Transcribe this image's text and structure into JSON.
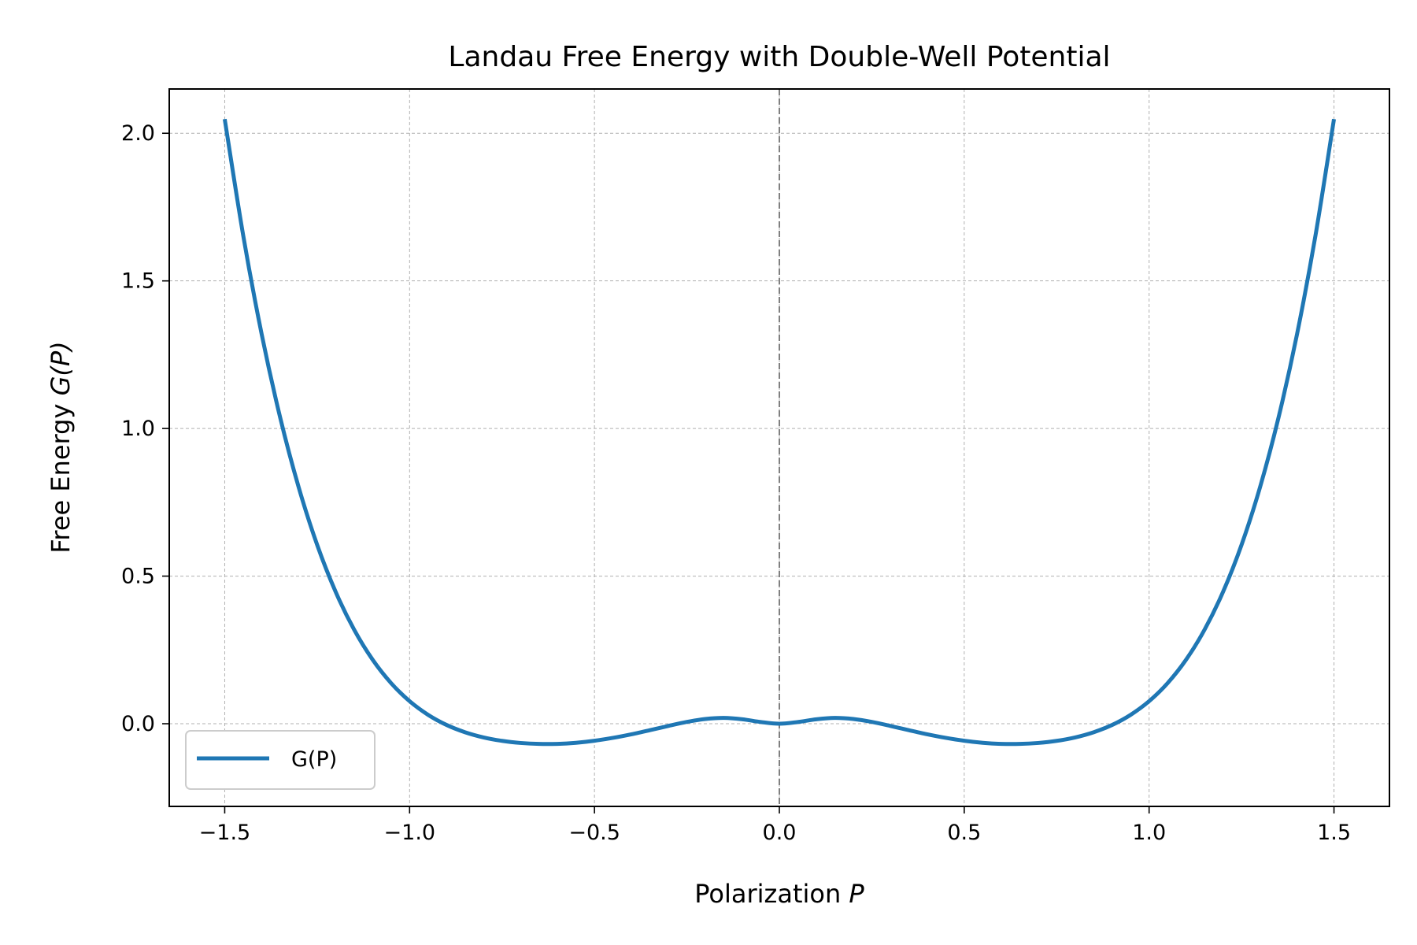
{
  "chart_data": {
    "type": "line",
    "title": "Landau Free Energy with Double-Well Potential",
    "xlabel": "Polarization",
    "xlabel_symbol": "P",
    "ylabel": "Free Energy",
    "ylabel_symbol": "G(P)",
    "xlim": [
      -1.65,
      1.65
    ],
    "ylim": [
      -0.28,
      2.15
    ],
    "x_ticks": [
      -1.5,
      -1.0,
      -0.5,
      0.0,
      0.5,
      1.0,
      1.5
    ],
    "x_tick_labels": [
      "−1.5",
      "−1.0",
      "−0.5",
      "0.0",
      "0.5",
      "1.0",
      "1.5"
    ],
    "y_ticks": [
      0.0,
      0.5,
      1.0,
      1.5,
      2.0
    ],
    "y_tick_labels": [
      "0.0",
      "0.5",
      "1.0",
      "1.5",
      "2.0"
    ],
    "grid": true,
    "legend_position": "lower-left",
    "reference_line": {
      "orientation": "vertical",
      "x": 0.0,
      "color": "#808080",
      "style": "dashed"
    },
    "series": [
      {
        "name": "G(P)",
        "color": "#1f77b4",
        "x": [
          -1.5,
          -1.45,
          -1.4,
          -1.35,
          -1.3,
          -1.25,
          -1.2,
          -1.15,
          -1.1,
          -1.05,
          -1.0,
          -0.95,
          -0.9,
          -0.85,
          -0.8,
          -0.75,
          -0.7,
          -0.65,
          -0.6,
          -0.55,
          -0.5,
          -0.45,
          -0.4,
          -0.35,
          -0.3,
          -0.25,
          -0.2,
          -0.15,
          -0.1,
          -0.05,
          0.0,
          0.05,
          0.1,
          0.15,
          0.2,
          0.25,
          0.3,
          0.35,
          0.4,
          0.45,
          0.5,
          0.55,
          0.6,
          0.65,
          0.7,
          0.75,
          0.8,
          0.85,
          0.9,
          0.95,
          1.0,
          1.05,
          1.1,
          1.15,
          1.2,
          1.25,
          1.3,
          1.35,
          1.4,
          1.45,
          1.5
        ],
        "y": [
          2.048,
          1.654,
          1.319,
          1.037,
          0.8011,
          0.6059,
          0.4467,
          0.3186,
          0.2169,
          0.1375,
          0.0764,
          0.0302,
          -0.0041,
          -0.0288,
          -0.0463,
          -0.058,
          -0.0651,
          -0.0684,
          -0.0682,
          -0.0645,
          -0.0576,
          -0.0478,
          -0.0357,
          -0.0219,
          -0.0073,
          0.0062,
          0.0161,
          0.0197,
          0.0152,
          0.0058,
          0.0,
          0.0058,
          0.0152,
          0.0197,
          0.0161,
          0.0062,
          -0.0073,
          -0.0219,
          -0.0357,
          -0.0478,
          -0.0576,
          -0.0645,
          -0.0682,
          -0.0684,
          -0.0651,
          -0.058,
          -0.0463,
          -0.0288,
          -0.0041,
          0.0302,
          0.0764,
          0.1375,
          0.2169,
          0.3186,
          0.4467,
          0.6059,
          0.8011,
          1.037,
          1.319,
          1.654,
          2.048
        ]
      }
    ]
  }
}
